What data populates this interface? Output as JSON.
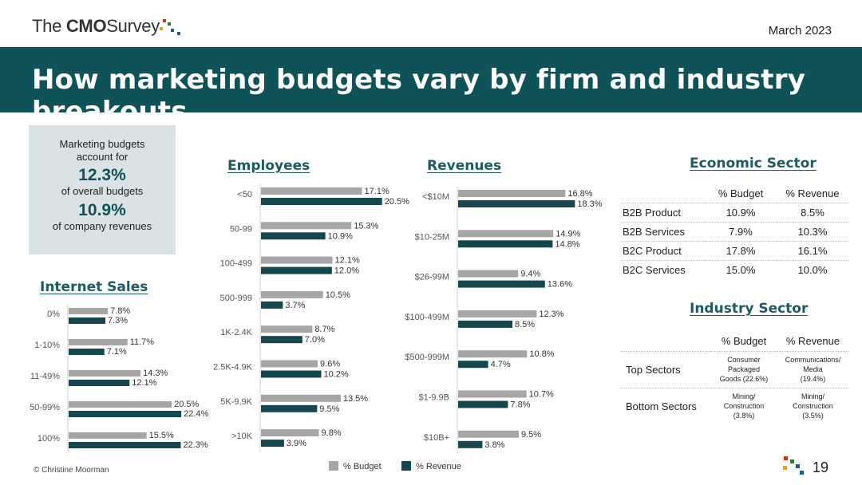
{
  "header": {
    "logo_prefix": "The",
    "logo_bold": "CMO",
    "logo_suffix": "Survey",
    "date": "March 2023",
    "title": "How marketing budgets vary by firm and industry breakouts"
  },
  "colors": {
    "banner": "#0f5257",
    "budget": "#a6a6a6",
    "revenue": "#16474e",
    "accent_text": "#1c5c62"
  },
  "summary": {
    "line1": "Marketing budgets",
    "line2": "account for",
    "value1": "12.3%",
    "label1": "of overall budgets",
    "value2": "10.9%",
    "label2": "of company revenues"
  },
  "chart_data": [
    {
      "type": "bar",
      "title": "Internet Sales",
      "categories": [
        "0%",
        "1-10%",
        "11-49%",
        "50-99%",
        "100%"
      ],
      "series": [
        {
          "name": "% Budget",
          "values": [
            7.8,
            11.7,
            14.3,
            20.5,
            15.5
          ]
        },
        {
          "name": "% Revenue",
          "values": [
            7.3,
            7.1,
            12.1,
            22.4,
            22.3
          ]
        }
      ]
    },
    {
      "type": "bar",
      "title": "Employees",
      "categories": [
        "<50",
        "50-99",
        "100-499",
        "500-999",
        "1K-2.4K",
        "2.5K-4.9K",
        "5K-9.9K",
        ">10K"
      ],
      "series": [
        {
          "name": "% Budget",
          "values": [
            17.1,
            15.3,
            12.1,
            10.5,
            8.7,
            9.6,
            13.5,
            9.8
          ]
        },
        {
          "name": "% Revenue",
          "values": [
            20.5,
            10.9,
            12.0,
            3.7,
            7.0,
            10.2,
            9.5,
            3.9
          ]
        }
      ]
    },
    {
      "type": "bar",
      "title": "Revenues",
      "categories": [
        "<$10M",
        "$10-25M",
        "$26-99M",
        "$100-499M",
        "$500-999M",
        "$1-9.9B",
        "$10B+"
      ],
      "series": [
        {
          "name": "% Budget",
          "values": [
            16.8,
            14.9,
            9.4,
            12.3,
            10.8,
            10.7,
            9.5
          ]
        },
        {
          "name": "% Revenue",
          "values": [
            18.3,
            14.8,
            13.6,
            8.5,
            4.7,
            7.8,
            3.8
          ]
        }
      ]
    },
    {
      "type": "table",
      "title": "Economic Sector",
      "columns": [
        "",
        "% Budget",
        "% Revenue"
      ],
      "rows": [
        [
          "B2B Product",
          "10.9%",
          "8.5%"
        ],
        [
          "B2B Services",
          "7.9%",
          "10.3%"
        ],
        [
          "B2C Product",
          "17.8%",
          "16.1%"
        ],
        [
          "B2C Services",
          "15.0%",
          "10.0%"
        ]
      ]
    },
    {
      "type": "table",
      "title": "Industry Sector",
      "columns": [
        "",
        "% Budget",
        "% Revenue"
      ],
      "rows": [
        [
          "Top Sectors",
          [
            "Consumer",
            "Packaged",
            "Goods (22.6%)"
          ],
          [
            "Communications/",
            "Media",
            "(19.4%)"
          ]
        ],
        [
          "Bottom Sectors",
          [
            "Mining/",
            "Construction",
            "(3.8%)"
          ],
          [
            "Mining/",
            "Construction",
            "(3.5%)"
          ]
        ]
      ]
    }
  ],
  "legend": {
    "budget": "% Budget",
    "revenue": "% Revenue"
  },
  "footer": {
    "copyright": "© Christine Moorman",
    "page": "19"
  }
}
